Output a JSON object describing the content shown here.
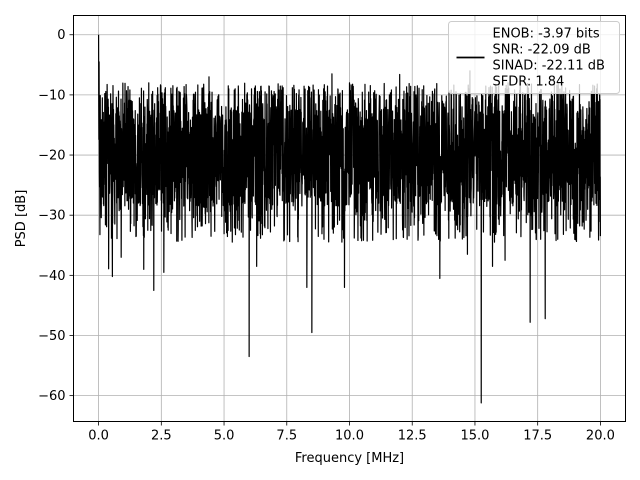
{
  "chart_data": {
    "type": "line",
    "title": "",
    "xlabel": "Frequency [MHz]",
    "ylabel": "PSD [dB]",
    "xlim": [
      -1.0,
      21.0
    ],
    "ylim": [
      -64.3,
      3.2
    ],
    "x_ticks": [
      0.0,
      2.5,
      5.0,
      7.5,
      10.0,
      12.5,
      15.0,
      17.5,
      20.0
    ],
    "x_tick_labels": [
      "0.0",
      "2.5",
      "5.0",
      "7.5",
      "10.0",
      "12.5",
      "15.0",
      "17.5",
      "20.0"
    ],
    "y_ticks": [
      0,
      -10,
      -20,
      -30,
      -40,
      -50,
      -60
    ],
    "y_tick_labels": [
      "0",
      "−10",
      "−20",
      "−30",
      "−40",
      "−50",
      "−60"
    ],
    "grid": true,
    "legend_position": "top-right",
    "series": [
      {
        "name": "ENOB: -3.97 bits\nSNR: -22.09 dB\nSINAD: -22.11 dB\nSFDR: 1.84",
        "color": "#000000",
        "x_range": [
          0.0,
          20.0
        ],
        "band_typical": [
          -28.5,
          -12.0
        ],
        "peaks": [
          {
            "x": 0.0,
            "y": 0.0
          },
          {
            "x": 0.02,
            "y": -4.5
          },
          {
            "x": 0.15,
            "y": -10.5
          },
          {
            "x": 2.0,
            "y": -8.0
          },
          {
            "x": 4.4,
            "y": -7.0
          },
          {
            "x": 8.3,
            "y": -6.3
          },
          {
            "x": 9.3,
            "y": -6.5
          },
          {
            "x": 10.0,
            "y": -8.0
          },
          {
            "x": 12.0,
            "y": -6.6
          },
          {
            "x": 14.8,
            "y": -6.0
          }
        ],
        "dips": [
          {
            "x": 0.4,
            "y": -38.9
          },
          {
            "x": 0.55,
            "y": -40.2
          },
          {
            "x": 0.9,
            "y": -37.0
          },
          {
            "x": 1.8,
            "y": -39.0
          },
          {
            "x": 2.2,
            "y": -42.5
          },
          {
            "x": 2.6,
            "y": -39.5
          },
          {
            "x": 6.0,
            "y": -53.5
          },
          {
            "x": 6.3,
            "y": -38.5
          },
          {
            "x": 8.3,
            "y": -42.0
          },
          {
            "x": 8.5,
            "y": -49.5
          },
          {
            "x": 9.8,
            "y": -42.0
          },
          {
            "x": 13.6,
            "y": -40.5
          },
          {
            "x": 14.7,
            "y": -36.5
          },
          {
            "x": 15.25,
            "y": -61.2
          },
          {
            "x": 15.7,
            "y": -38.5
          },
          {
            "x": 16.2,
            "y": -37.5
          },
          {
            "x": 17.2,
            "y": -47.8
          },
          {
            "x": 17.8,
            "y": -47.2
          },
          {
            "x": 18.3,
            "y": -34.0
          }
        ]
      }
    ]
  }
}
